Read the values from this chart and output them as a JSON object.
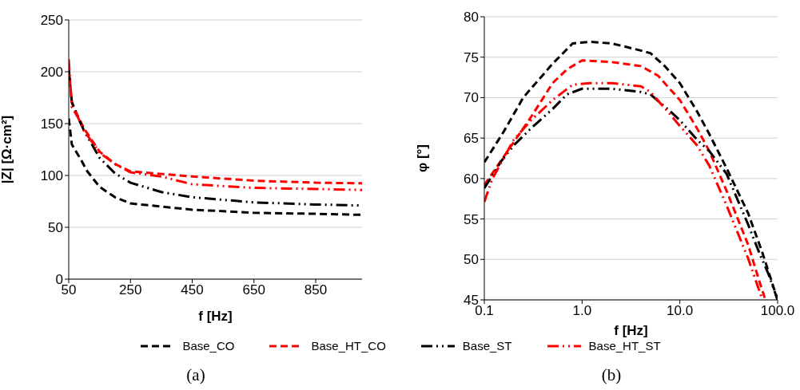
{
  "chart_data": [
    {
      "type": "line",
      "xlabel": "f [Hz]",
      "ylabel": "|Z| [Ω·cm²]",
      "xlim": [
        50,
        1000
      ],
      "xticks": [
        50,
        250,
        450,
        650,
        850
      ],
      "ylim": [
        0,
        250
      ],
      "yticks": [
        0,
        50,
        100,
        150,
        200,
        250
      ],
      "grid": "y",
      "legend": "bottom",
      "marker": "none",
      "annotations": [
        "(a)"
      ],
      "series": [
        {
          "name": "Base_CO",
          "color": "#000000",
          "line_style": "dashed",
          "x": [
            50,
            60,
            90,
            110,
            150,
            200,
            250,
            350,
            450,
            650,
            850,
            1000
          ],
          "values": [
            155,
            130,
            115,
            104,
            89,
            79,
            73,
            70,
            67,
            64,
            63,
            62
          ]
        },
        {
          "name": "Base_HT_CO",
          "color": "#ff0000",
          "line_style": "dashed",
          "x": [
            50,
            60,
            80,
            100,
            150,
            200,
            250,
            450,
            650,
            850,
            1000
          ],
          "values": [
            205,
            170,
            157,
            145,
            123,
            111,
            104,
            99,
            95,
            93,
            92.5
          ]
        },
        {
          "name": "Base_ST",
          "color": "#000000",
          "line_style": "dotted",
          "x": [
            50,
            60,
            80,
            100,
            150,
            200,
            250,
            350,
            450,
            650,
            850,
            1000
          ],
          "values": [
            202,
            171,
            156,
            143,
            117,
            102,
            93,
            84,
            79,
            74,
            72,
            71
          ]
        },
        {
          "name": "Base_HT_ST",
          "color": "#ff0000",
          "line_style": "dotted",
          "x": [
            50,
            60,
            80,
            100,
            150,
            200,
            250,
            350,
            450,
            650,
            850,
            1000
          ],
          "values": [
            212,
            166,
            156,
            143,
            122,
            111,
            103,
            99,
            91.5,
            88,
            87,
            86
          ]
        }
      ]
    },
    {
      "type": "line",
      "xlabel": "f [Hz]",
      "ylabel": "φ [°]",
      "log": "x",
      "xlim": [
        0.1,
        100
      ],
      "xticks": [
        0.1,
        {
          "value": 1,
          "label": "1.0"
        },
        {
          "value": 10,
          "label": "10.0"
        },
        {
          "value": 100,
          "label": "100.0"
        }
      ],
      "ylim": [
        45,
        80
      ],
      "yticks": [
        45,
        50,
        55,
        60,
        65,
        70,
        75,
        80
      ],
      "grid": "y",
      "marker": "none",
      "annotations": [
        "(b)"
      ],
      "series": [
        {
          "color": "#000000",
          "line_style": "dashed",
          "x": [
            0.1,
            0.158,
            0.25,
            0.5,
            0.8,
            1.2,
            2,
            3.5,
            5,
            7,
            10,
            15,
            20,
            30,
            50,
            70,
            100
          ],
          "values": [
            62,
            65.8,
            70,
            74.2,
            76.7,
            76.9,
            76.7,
            76,
            75.5,
            73.9,
            71.8,
            68.3,
            65.5,
            61.3,
            55.7,
            50.8,
            45
          ]
        },
        {
          "color": "#ff0000",
          "line_style": "dashed",
          "x": [
            0.1,
            0.3,
            0.5,
            0.7,
            1,
            2,
            4,
            6,
            10,
            15,
            20,
            30,
            50,
            65,
            75
          ],
          "values": [
            59.2,
            67.6,
            71.8,
            73.5,
            74.6,
            74.4,
            73.9,
            72.7,
            69.7,
            66.2,
            63.4,
            58.5,
            51.8,
            47.3,
            45
          ]
        },
        {
          "color": "#000000",
          "line_style": "dotted",
          "x": [
            0.1,
            0.15,
            0.2,
            0.3,
            0.5,
            0.7,
            1,
            2,
            4,
            5,
            8,
            10,
            15,
            20,
            30,
            50,
            65,
            80,
            100
          ],
          "values": [
            58.8,
            62.2,
            64.1,
            66.2,
            68.6,
            70.4,
            71.1,
            71.1,
            70.7,
            70.4,
            68.3,
            67.2,
            64.8,
            63.4,
            60.6,
            54.3,
            50.8,
            48.3,
            45
          ]
        },
        {
          "color": "#ff0000",
          "line_style": "dotted",
          "x": [
            0.1,
            0.12,
            0.2,
            0.3,
            0.5,
            0.8,
            1.2,
            2,
            4,
            5,
            8,
            10,
            15,
            20,
            30,
            50,
            70
          ],
          "values": [
            57.1,
            59.9,
            64.8,
            67.2,
            69.7,
            71.6,
            71.8,
            71.8,
            71.4,
            70.7,
            67.9,
            66.5,
            64.1,
            61.6,
            56.7,
            50.1,
            45
          ]
        }
      ]
    }
  ]
}
